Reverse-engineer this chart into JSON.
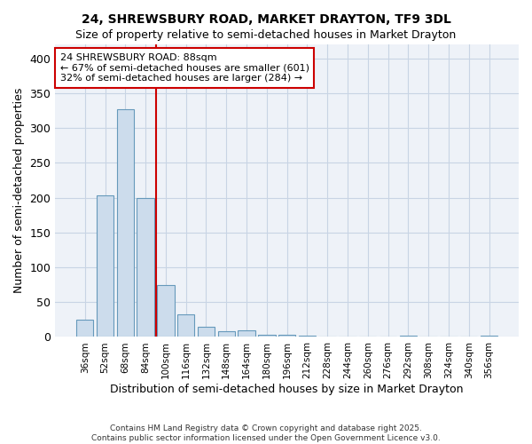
{
  "title": "24, SHREWSBURY ROAD, MARKET DRAYTON, TF9 3DL",
  "subtitle": "Size of property relative to semi-detached houses in Market Drayton",
  "xlabel": "Distribution of semi-detached houses by size in Market Drayton",
  "ylabel": "Number of semi-detached properties",
  "footer_line1": "Contains HM Land Registry data © Crown copyright and database right 2025.",
  "footer_line2": "Contains public sector information licensed under the Open Government Licence v3.0.",
  "annotation_title": "24 SHREWSBURY ROAD: 88sqm",
  "annotation_line1": "← 67% of semi-detached houses are smaller (601)",
  "annotation_line2": "32% of semi-detached houses are larger (284) →",
  "categories": [
    "36sqm",
    "52sqm",
    "68sqm",
    "84sqm",
    "100sqm",
    "116sqm",
    "132sqm",
    "148sqm",
    "164sqm",
    "180sqm",
    "196sqm",
    "212sqm",
    "228sqm",
    "244sqm",
    "260sqm",
    "276sqm",
    "292sqm",
    "308sqm",
    "324sqm",
    "340sqm",
    "356sqm"
  ],
  "values": [
    25,
    203,
    327,
    200,
    75,
    33,
    15,
    8,
    9,
    3,
    3,
    2,
    1,
    1,
    1,
    0,
    2,
    0,
    0,
    0,
    2
  ],
  "bar_color": "#ccdcec",
  "bar_edge_color": "#6699bb",
  "vline_color": "#cc0000",
  "vline_x": 3.5,
  "annotation_box_color": "#cc0000",
  "background_color": "#ffffff",
  "plot_bg_color": "#eef2f8",
  "grid_color": "#c8d4e4",
  "ylim": [
    0,
    420
  ],
  "yticks": [
    0,
    50,
    100,
    150,
    200,
    250,
    300,
    350,
    400
  ]
}
